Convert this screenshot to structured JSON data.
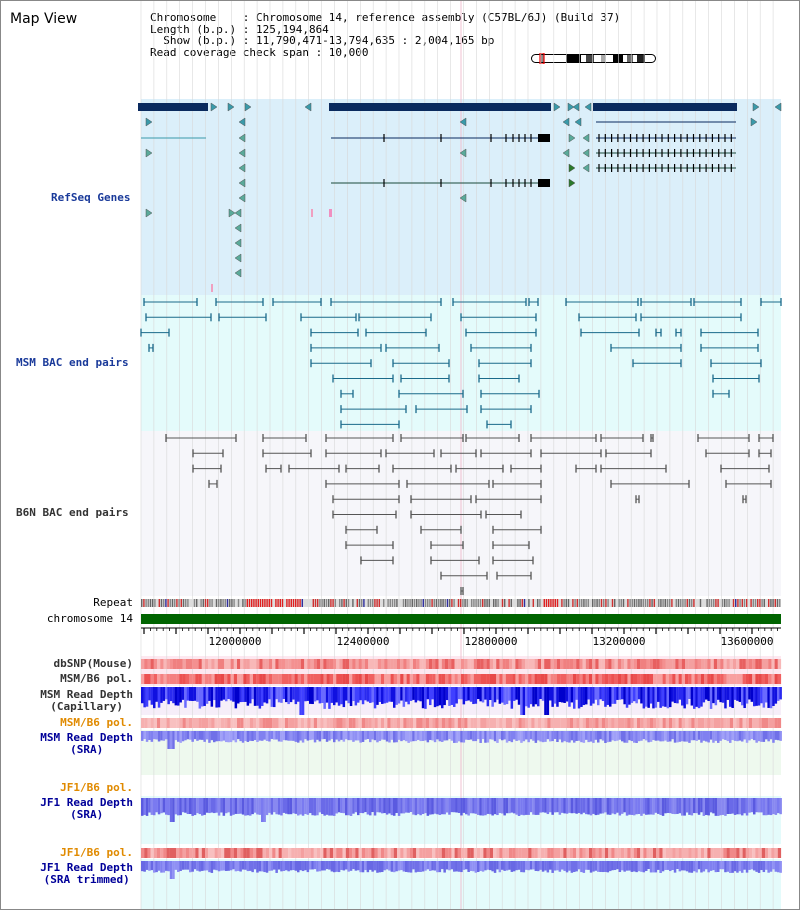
{
  "title": "Map View",
  "info": {
    "line1": "Chromosome    : Chromosome 14, reference assembly (C57BL/6J) (Build 37)",
    "line2": "Length (b.p.) : 125,194,864",
    "line3": "  Show (b.p.) : 11,790,471-13,794,635 : 2,004,165 bp",
    "line4": "Read coverage check span : 10,000"
  },
  "tracks": {
    "refseq": "RefSeq Genes",
    "msm_bac": "MSM BAC end pairs",
    "b6n_bac": "B6N BAC end pairs",
    "repeat": "Repeat",
    "chromosome": "chromosome 14",
    "dbsnp": "dbSNP(Mouse)",
    "msm_b6_pol": "MSM/B6 pol.",
    "msm_read_depth_cap_1": "MSM Read Depth",
    "msm_read_depth_cap_2": "(Capillary)",
    "msm_b6_pol_2": "MSM/B6 pol.",
    "msm_read_depth_sra_1": "MSM Read Depth",
    "msm_read_depth_sra_2": "(SRA)",
    "jf1_b6_pol": "JF1/B6 pol.",
    "jf1_read_depth_sra_1": "JF1 Read Depth",
    "jf1_read_depth_sra_2": "(SRA)",
    "jf1_b6_pol_2": "JF1/B6 pol.",
    "jf1_read_depth_trim_1": "JF1 Read Depth",
    "jf1_read_depth_trim_2": "(SRA trimmed)"
  },
  "axis": {
    "ticks": [
      "12000000",
      "12400000",
      "12800000",
      "13200000",
      "13600000"
    ]
  },
  "colors": {
    "refseq_bg": "#dbeffa",
    "msm_bg": "#e4fbfb",
    "b6n_bg": "#f6f6fa",
    "gene_dark": "#0a2a5e",
    "chromosome": "#006400",
    "orange_label": "#e08a00",
    "blue_label": "#000099"
  }
}
